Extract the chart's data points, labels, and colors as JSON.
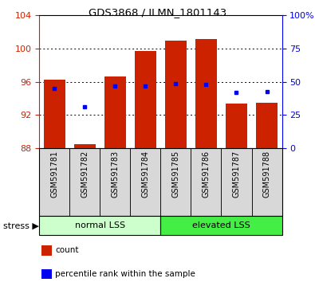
{
  "title": "GDS3868 / ILMN_1801143",
  "categories": [
    "GSM591781",
    "GSM591782",
    "GSM591783",
    "GSM591784",
    "GSM591785",
    "GSM591786",
    "GSM591787",
    "GSM591788"
  ],
  "bar_bottoms": [
    88,
    88,
    88,
    88,
    88,
    88,
    88,
    88
  ],
  "bar_tops": [
    96.3,
    88.5,
    96.6,
    99.7,
    101.0,
    101.2,
    93.4,
    93.5
  ],
  "bar_color": "#cc2200",
  "blue_dot_values": [
    95.2,
    93.0,
    95.5,
    95.5,
    95.8,
    95.7,
    94.7,
    94.8
  ],
  "blue_dot_color": "#0000ee",
  "ylim": [
    88,
    104
  ],
  "yticks_left": [
    88,
    92,
    96,
    100,
    104
  ],
  "right_ticks_pos": [
    88,
    92,
    96,
    100,
    104
  ],
  "right_ticks_labels": [
    "0",
    "25",
    "50",
    "75",
    "100%"
  ],
  "left_tick_color": "#cc2200",
  "right_tick_color": "#0000ee",
  "grid_yticks": [
    92,
    96,
    100
  ],
  "group_labels": [
    "normal LSS",
    "elevated LSS"
  ],
  "group_colors": [
    "#ccffcc",
    "#44ee44"
  ],
  "legend_items": [
    {
      "color": "#cc2200",
      "label": "count"
    },
    {
      "color": "#0000ee",
      "label": "percentile rank within the sample"
    }
  ],
  "bar_width": 0.7,
  "bg_color": "#ffffff",
  "plot_bg": "#ffffff",
  "gray_box_color": "#d8d8d8"
}
